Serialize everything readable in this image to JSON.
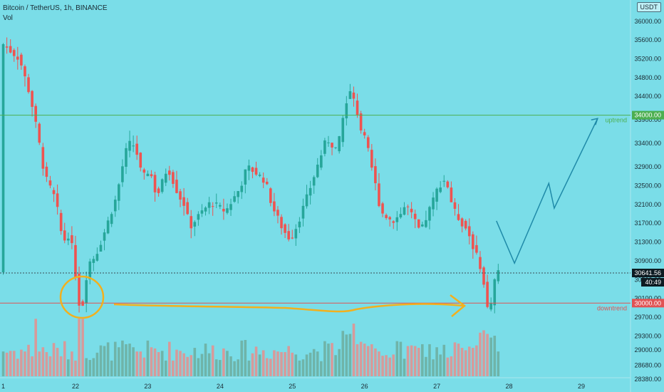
{
  "header": {
    "title": "Bitcoin / TetherUS, 1h, BINANCE",
    "volume_label": "Vol",
    "currency": "USDT"
  },
  "colors": {
    "background": "#7adde8",
    "up": "#26a69a",
    "down": "#ef5350",
    "vol_up": "#6fb4a9",
    "vol_down": "#d79a9a",
    "uptrend": "#4caf50",
    "downtrend": "#e05353",
    "projection": "#1f8aa8",
    "annotation": "#f2b01e",
    "price_tag_bg": "#0d1b22"
  },
  "chart_data": {
    "type": "candlestick",
    "symbol": "Bitcoin / TetherUS",
    "interval": "1h",
    "exchange": "BINANCE",
    "y_unit": "USDT",
    "ylim": [
      28260,
      36330
    ],
    "yticks": [
      28380,
      28680,
      29000,
      29300,
      29700,
      30100,
      30500,
      30900,
      31300,
      31700,
      32100,
      32500,
      32900,
      33400,
      33900,
      34400,
      34800,
      35200,
      35600,
      36000
    ],
    "ytick_labels": [
      "28380.00",
      "28680.00",
      "29000.00",
      "29300.00",
      "29700.00",
      "30100.00",
      "30500.00",
      "30900.00",
      "31300.00",
      "31700.00",
      "32100.00",
      "32500.00",
      "32900.00",
      "33400.00",
      "33900.00",
      "34400.00",
      "34800.00",
      "35200.00",
      "35600.00",
      "36000.00"
    ],
    "x_labels": [
      {
        "label": "1",
        "pos": 0
      },
      {
        "label": "22",
        "pos": 20
      },
      {
        "label": "23",
        "pos": 40
      },
      {
        "label": "24",
        "pos": 60
      },
      {
        "label": "25",
        "pos": 80
      },
      {
        "label": "26",
        "pos": 100
      },
      {
        "label": "27",
        "pos": 120
      },
      {
        "label": "28",
        "pos": 140
      },
      {
        "label": "29",
        "pos": 160
      }
    ],
    "candles": [],
    "volume": [],
    "levels": [
      {
        "price": 34000,
        "label": "34000.00",
        "name": "uptrend",
        "style": "solid"
      },
      {
        "price": 30000,
        "label": "30000.00",
        "name": "downtrend",
        "style": "solid"
      },
      {
        "price": 30641.56,
        "label": "30641.56",
        "sub": "40:49",
        "style": "dotted"
      }
    ],
    "projection": [
      [
        136.5,
        31750
      ],
      [
        141.5,
        30850
      ],
      [
        151,
        32550
      ],
      [
        152.5,
        32020
      ],
      [
        164.5,
        33930
      ]
    ]
  }
}
